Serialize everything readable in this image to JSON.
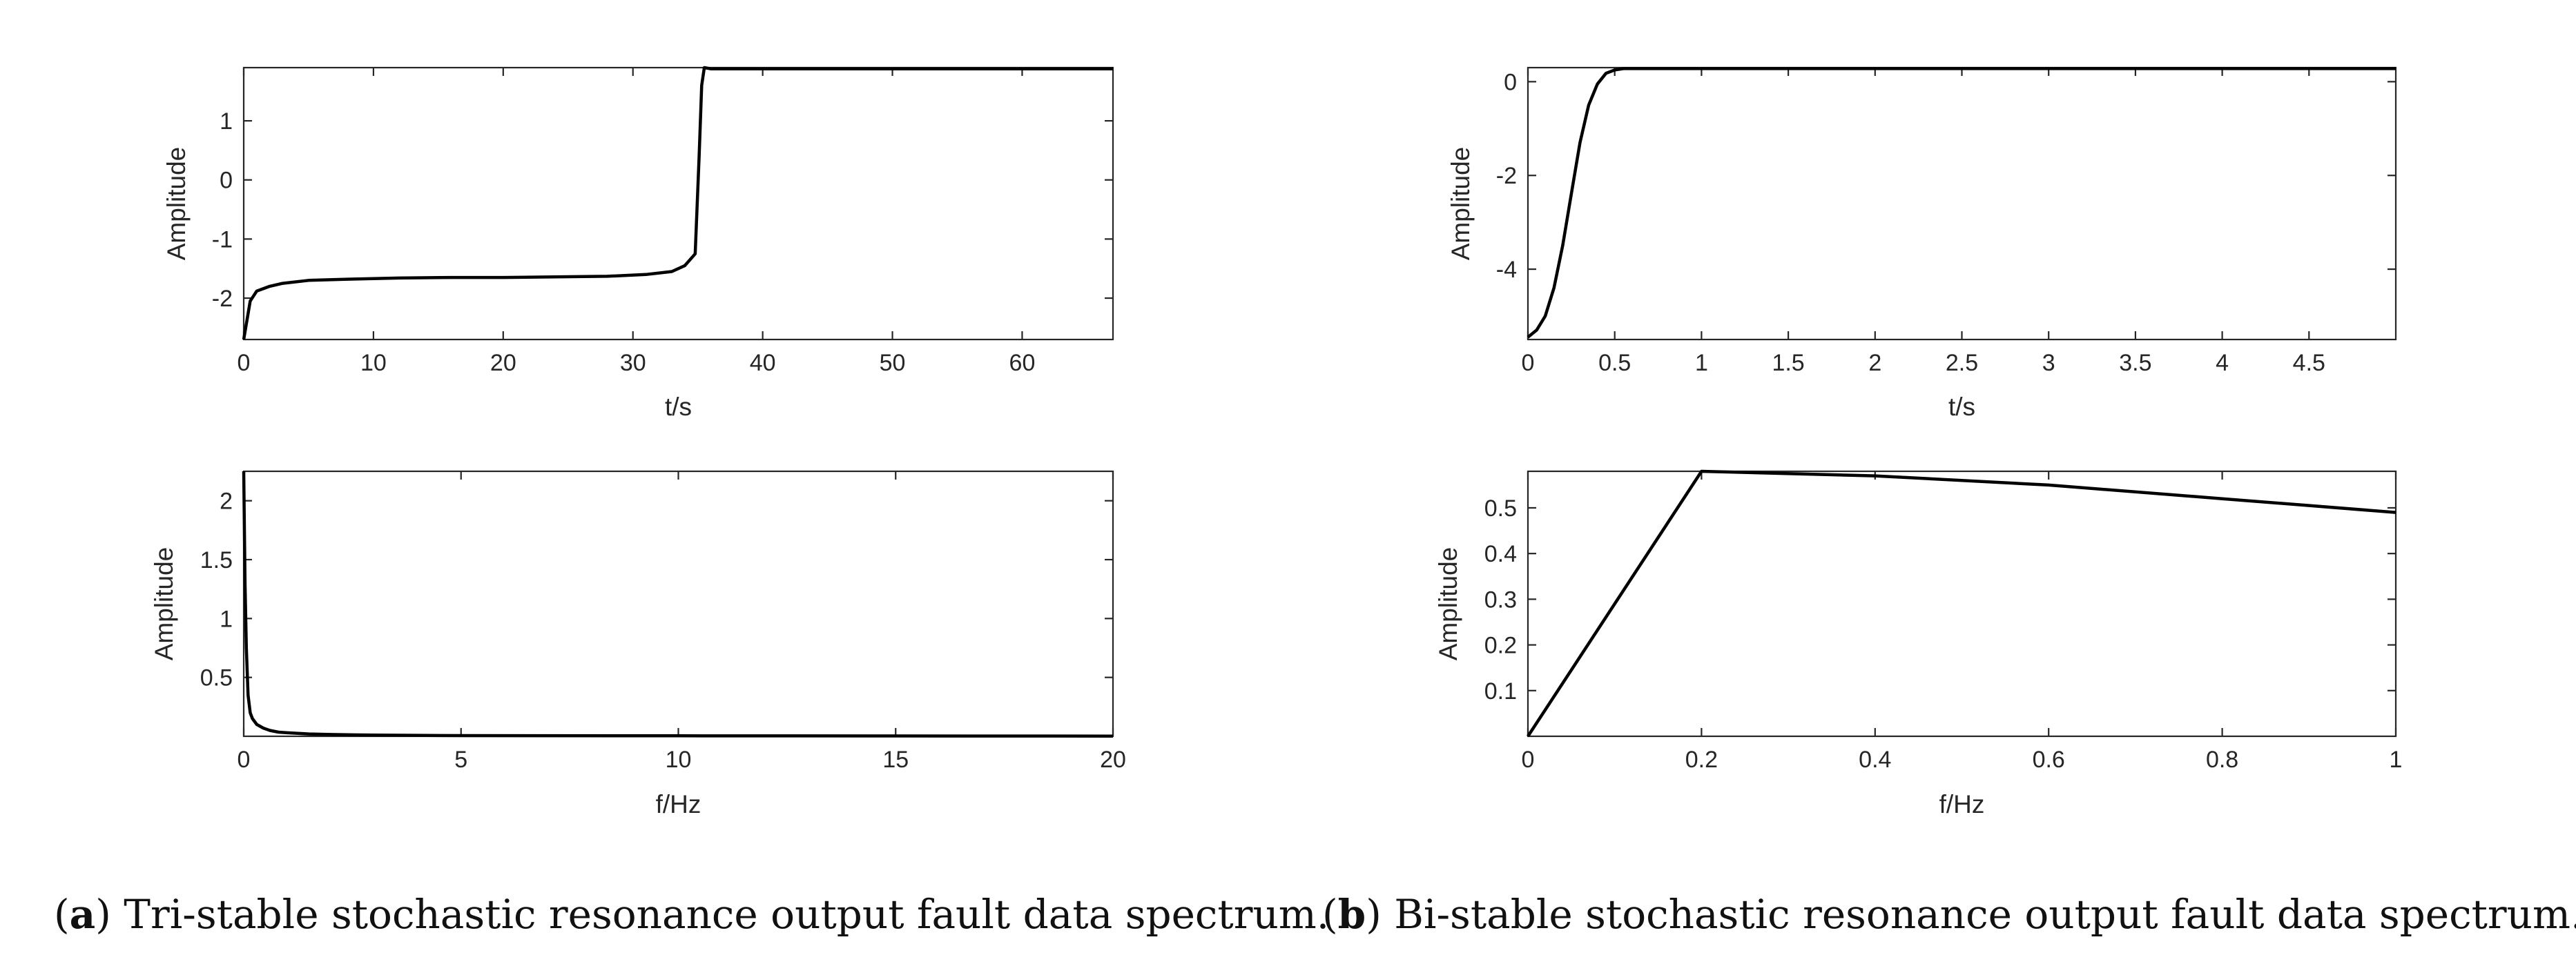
{
  "chart_data": [
    {
      "type": "line",
      "xlabel": "t/s",
      "ylabel": "Amplitude",
      "xlim": [
        0,
        67
      ],
      "ylim": [
        -2.7,
        1.9
      ],
      "xticks": [
        0,
        10,
        20,
        30,
        40,
        50,
        60
      ],
      "yticks": [
        -2,
        -1,
        0,
        1
      ],
      "xticklabels": [
        "0",
        "10",
        "20",
        "30",
        "40",
        "50",
        "60"
      ],
      "yticklabels": [
        "-2",
        "-1",
        "0",
        "1"
      ],
      "series": [
        {
          "x": [
            0,
            0.5,
            1,
            2,
            3,
            5,
            8,
            12,
            16,
            20,
            24,
            28,
            31,
            33,
            34,
            34.8,
            35.1,
            35.3,
            35.5,
            36,
            40,
            45,
            50,
            55,
            60,
            65,
            67
          ],
          "y": [
            -2.7,
            -2.05,
            -1.88,
            -1.8,
            -1.75,
            -1.7,
            -1.68,
            -1.66,
            -1.65,
            -1.65,
            -1.64,
            -1.63,
            -1.6,
            -1.55,
            -1.45,
            -1.25,
            0.4,
            1.6,
            1.9,
            1.88,
            1.88,
            1.88,
            1.88,
            1.88,
            1.88,
            1.88,
            1.88
          ]
        }
      ]
    },
    {
      "type": "line",
      "xlabel": "f/Hz",
      "ylabel": "Amplitude",
      "xlim": [
        0,
        20
      ],
      "ylim": [
        0,
        2.25
      ],
      "xticks": [
        0,
        5,
        10,
        15,
        20
      ],
      "yticks": [
        0.5,
        1,
        1.5,
        2
      ],
      "xticklabels": [
        "0",
        "5",
        "10",
        "15",
        "20"
      ],
      "yticklabels": [
        "0.5",
        "1",
        "1.5",
        "2"
      ],
      "series": [
        {
          "x": [
            0,
            0.03,
            0.06,
            0.1,
            0.15,
            0.2,
            0.3,
            0.45,
            0.6,
            0.8,
            1.0,
            1.5,
            2.0,
            3.0,
            5.0,
            10.0,
            15.0,
            20.0
          ],
          "y": [
            2.25,
            1.3,
            0.75,
            0.35,
            0.2,
            0.15,
            0.1,
            0.07,
            0.05,
            0.035,
            0.03,
            0.02,
            0.015,
            0.01,
            0.006,
            0.004,
            0.003,
            0.002
          ]
        }
      ]
    },
    {
      "type": "line",
      "xlabel": "t/s",
      "ylabel": "Amplitude",
      "xlim": [
        0,
        5
      ],
      "ylim": [
        -5.5,
        0.3
      ],
      "xticks": [
        0,
        0.5,
        1,
        1.5,
        2,
        2.5,
        3,
        3.5,
        4,
        4.5
      ],
      "yticks": [
        -4,
        -2,
        0
      ],
      "xticklabels": [
        "0",
        "0.5",
        "1",
        "1.5",
        "2",
        "2.5",
        "3",
        "3.5",
        "4",
        "4.5"
      ],
      "yticklabels": [
        "-4",
        "-2",
        "0"
      ],
      "series": [
        {
          "x": [
            0,
            0.05,
            0.1,
            0.15,
            0.2,
            0.25,
            0.3,
            0.35,
            0.4,
            0.45,
            0.5,
            0.55,
            0.6,
            1.0,
            2.0,
            3.0,
            4.0,
            5.0
          ],
          "y": [
            -5.45,
            -5.3,
            -5.0,
            -4.4,
            -3.5,
            -2.4,
            -1.3,
            -0.5,
            -0.05,
            0.18,
            0.25,
            0.28,
            0.28,
            0.28,
            0.28,
            0.28,
            0.28,
            0.28
          ]
        }
      ]
    },
    {
      "type": "line",
      "xlabel": "f/Hz",
      "ylabel": "Amplitude",
      "xlim": [
        0,
        1
      ],
      "ylim": [
        0,
        0.58
      ],
      "xticks": [
        0,
        0.2,
        0.4,
        0.6,
        0.8,
        1
      ],
      "yticks": [
        0.1,
        0.2,
        0.3,
        0.4,
        0.5
      ],
      "xticklabels": [
        "0",
        "0.2",
        "0.4",
        "0.6",
        "0.8",
        "1"
      ],
      "yticklabels": [
        "0.1",
        "0.2",
        "0.3",
        "0.4",
        "0.5"
      ],
      "series": [
        {
          "x": [
            0,
            0.2,
            0.4,
            0.6,
            0.8,
            1.0
          ],
          "y": [
            0.0,
            0.58,
            0.57,
            0.55,
            0.52,
            0.49
          ]
        }
      ]
    }
  ],
  "captions": {
    "a_label": "a",
    "a_text": " Tri-stable stochastic resonance output fault data spectrum.",
    "b_label": "b",
    "b_text": " Bi-stable stochastic resonance output fault data spectrum."
  }
}
